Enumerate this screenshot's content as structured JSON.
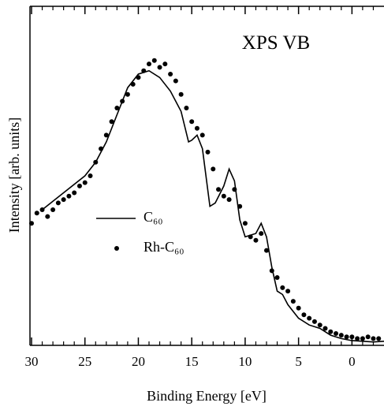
{
  "chart_data": {
    "type": "line-scatter",
    "annotation": "XPS VB",
    "x_label": "Binding Energy [eV]",
    "y_label": "Intensity [arb. units]",
    "xlim": [
      30,
      -3
    ],
    "ylim": [
      0,
      100
    ],
    "xticks": [
      30,
      25,
      20,
      15,
      10,
      5,
      0
    ],
    "xminorticks": [
      29,
      28,
      27,
      26,
      24,
      23,
      22,
      21,
      19,
      18,
      17,
      16,
      14,
      13,
      12,
      11,
      9,
      8,
      7,
      6,
      4,
      3,
      2,
      1,
      -1,
      -2
    ],
    "series": [
      {
        "name": "C₆₀",
        "kind": "line",
        "color": "#000000",
        "x": [
          29,
          27,
          25,
          24,
          23,
          22,
          21,
          20,
          19,
          18,
          17,
          16,
          15.3,
          15,
          14.5,
          14,
          13.3,
          12.8,
          12,
          11.5,
          11,
          10.5,
          10,
          9,
          8.5,
          8,
          7.5,
          7,
          6.5,
          6,
          5,
          4,
          3,
          2,
          1,
          0,
          -2,
          -3
        ],
        "values": [
          40,
          45,
          50,
          54,
          60,
          68,
          76,
          80,
          81,
          79,
          75,
          69,
          60,
          60.5,
          62,
          58,
          41,
          42,
          47,
          52,
          48.5,
          37,
          32,
          33,
          36,
          32,
          23,
          16,
          15,
          12,
          8,
          6,
          5,
          3,
          2,
          1.4,
          1,
          1.2
        ]
      },
      {
        "name": "Rh-C₆₀",
        "kind": "scatter",
        "color": "#000000",
        "x": [
          30,
          29.5,
          29,
          28.5,
          28,
          27.5,
          27,
          26.5,
          26,
          25.5,
          25,
          24.5,
          24,
          23.5,
          23,
          22.5,
          22,
          21.5,
          21,
          20.5,
          20,
          19.5,
          19,
          18.5,
          18,
          17.5,
          17,
          16.5,
          16,
          15.5,
          15,
          14.5,
          14,
          13.5,
          13,
          12.5,
          12,
          11.5,
          11,
          10.5,
          10,
          9.5,
          9,
          8.5,
          8,
          7.5,
          7,
          6.5,
          6,
          5.5,
          5,
          4.5,
          4,
          3.5,
          3,
          2.5,
          2,
          1.5,
          1,
          0.5,
          0,
          -0.5,
          -1,
          -1.5,
          -2,
          -2.5
        ],
        "values": [
          36,
          39,
          40,
          38,
          40,
          42,
          43,
          44,
          45,
          47,
          48,
          50,
          54,
          58,
          62,
          66,
          70,
          72,
          74,
          77,
          79,
          81,
          83,
          84,
          82,
          83,
          80,
          78,
          74,
          70,
          66,
          64,
          62,
          57,
          52,
          46,
          44,
          43,
          46,
          41,
          36,
          32,
          31,
          33,
          28,
          22,
          20,
          17,
          16,
          13,
          11,
          9,
          8,
          7,
          6,
          5,
          4,
          3.5,
          3,
          2.5,
          2.5,
          2,
          2,
          2.5,
          2,
          2
        ]
      }
    ]
  }
}
